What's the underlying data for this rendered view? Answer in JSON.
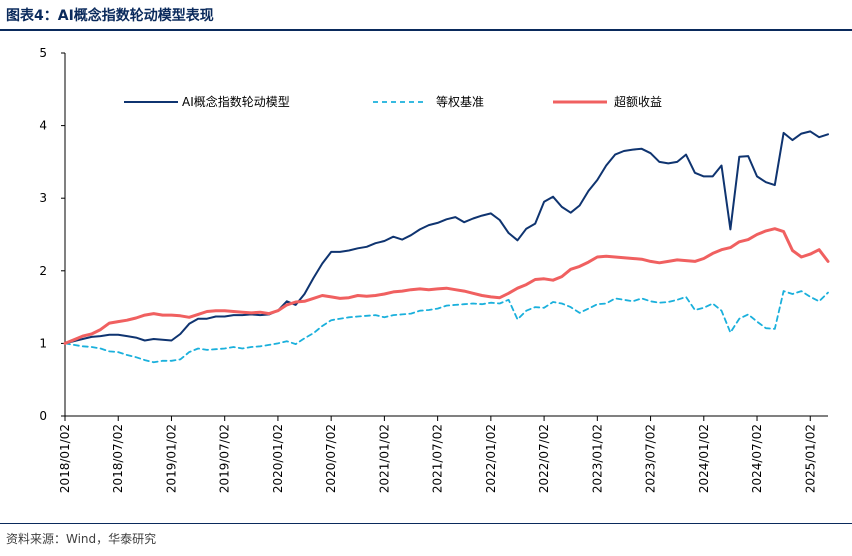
{
  "header": {
    "title": "图表4：AI概念指数轮动模型表现"
  },
  "footer": {
    "source": "资料来源：Wind，华泰研究"
  },
  "colors": {
    "model": "#0f3470",
    "benchmark": "#1ab0dc",
    "excess": "#f06060",
    "frame": "#0a2a5c"
  },
  "chart_data": {
    "type": "line",
    "title": "AI概念指数轮动模型表现",
    "xlabel": "",
    "ylabel": "",
    "ylim": [
      0,
      5
    ],
    "yticks": [
      "0",
      "1",
      "2",
      "3",
      "4",
      "5"
    ],
    "xticks": [
      "2018/01/02",
      "2018/07/02",
      "2019/01/02",
      "2019/07/02",
      "2020/01/02",
      "2020/07/02",
      "2021/01/02",
      "2021/07/02",
      "2022/01/02",
      "2022/07/02",
      "2023/01/02",
      "2023/07/02",
      "2024/01/02",
      "2024/07/02",
      "2025/01/02"
    ],
    "x": [
      "2018-01",
      "2018-02",
      "2018-03",
      "2018-04",
      "2018-05",
      "2018-06",
      "2018-07",
      "2018-08",
      "2018-09",
      "2018-10",
      "2018-11",
      "2018-12",
      "2019-01",
      "2019-02",
      "2019-03",
      "2019-04",
      "2019-05",
      "2019-06",
      "2019-07",
      "2019-08",
      "2019-09",
      "2019-10",
      "2019-11",
      "2019-12",
      "2020-01",
      "2020-02",
      "2020-03",
      "2020-04",
      "2020-05",
      "2020-06",
      "2020-07",
      "2020-08",
      "2020-09",
      "2020-10",
      "2020-11",
      "2020-12",
      "2021-01",
      "2021-02",
      "2021-03",
      "2021-04",
      "2021-05",
      "2021-06",
      "2021-07",
      "2021-08",
      "2021-09",
      "2021-10",
      "2021-11",
      "2021-12",
      "2022-01",
      "2022-02",
      "2022-03",
      "2022-04",
      "2022-05",
      "2022-06",
      "2022-07",
      "2022-08",
      "2022-09",
      "2022-10",
      "2022-11",
      "2022-12",
      "2023-01",
      "2023-02",
      "2023-03",
      "2023-04",
      "2023-05",
      "2023-06",
      "2023-07",
      "2023-08",
      "2023-09",
      "2023-10",
      "2023-11",
      "2023-12",
      "2024-01",
      "2024-02",
      "2024-03",
      "2024-04",
      "2024-05",
      "2024-06",
      "2024-07",
      "2024-08",
      "2024-09",
      "2024-10",
      "2024-11",
      "2024-12",
      "2025-01",
      "2025-02",
      "2025-03"
    ],
    "legend": {
      "placement": "top",
      "orientation": "horizontal"
    },
    "grid": false,
    "series": [
      {
        "name": "AI概念指数轮动模型",
        "style": "solid",
        "values": [
          1.0,
          1.03,
          1.06,
          1.09,
          1.1,
          1.12,
          1.12,
          1.1,
          1.08,
          1.04,
          1.06,
          1.05,
          1.04,
          1.13,
          1.27,
          1.34,
          1.34,
          1.37,
          1.37,
          1.39,
          1.39,
          1.4,
          1.39,
          1.4,
          1.45,
          1.58,
          1.53,
          1.68,
          1.9,
          2.1,
          2.26,
          2.26,
          2.28,
          2.31,
          2.33,
          2.38,
          2.41,
          2.47,
          2.43,
          2.49,
          2.57,
          2.63,
          2.66,
          2.71,
          2.74,
          2.67,
          2.72,
          2.76,
          2.79,
          2.7,
          2.52,
          2.42,
          2.58,
          2.65,
          2.95,
          3.02,
          2.88,
          2.8,
          2.9,
          3.1,
          3.25,
          3.45,
          3.6,
          3.65,
          3.67,
          3.68,
          3.62,
          3.5,
          3.48,
          3.5,
          3.6,
          3.35,
          3.3,
          3.3,
          3.45,
          2.57,
          3.57,
          3.58,
          3.3,
          3.22,
          3.18,
          3.9,
          3.8,
          3.89,
          3.92,
          3.84,
          3.88
        ]
      },
      {
        "name": "等权基准",
        "style": "dashed",
        "values": [
          1.0,
          0.98,
          0.96,
          0.95,
          0.93,
          0.89,
          0.88,
          0.84,
          0.81,
          0.77,
          0.74,
          0.76,
          0.76,
          0.78,
          0.88,
          0.93,
          0.91,
          0.92,
          0.93,
          0.95,
          0.93,
          0.95,
          0.96,
          0.98,
          1.0,
          1.03,
          0.99,
          1.07,
          1.14,
          1.24,
          1.32,
          1.34,
          1.36,
          1.37,
          1.38,
          1.39,
          1.36,
          1.39,
          1.4,
          1.41,
          1.45,
          1.46,
          1.48,
          1.52,
          1.53,
          1.54,
          1.55,
          1.54,
          1.56,
          1.55,
          1.6,
          1.33,
          1.45,
          1.5,
          1.49,
          1.57,
          1.55,
          1.5,
          1.42,
          1.48,
          1.54,
          1.55,
          1.62,
          1.6,
          1.58,
          1.62,
          1.58,
          1.56,
          1.57,
          1.6,
          1.64,
          1.46,
          1.49,
          1.55,
          1.45,
          1.15,
          1.34,
          1.4,
          1.3,
          1.21,
          1.2,
          1.72,
          1.68,
          1.72,
          1.64,
          1.58,
          1.7
        ]
      },
      {
        "name": "超额收益",
        "style": "solid",
        "values": [
          1.0,
          1.05,
          1.1,
          1.13,
          1.19,
          1.28,
          1.3,
          1.32,
          1.35,
          1.39,
          1.41,
          1.39,
          1.39,
          1.38,
          1.36,
          1.4,
          1.44,
          1.45,
          1.45,
          1.44,
          1.43,
          1.42,
          1.43,
          1.41,
          1.45,
          1.53,
          1.57,
          1.58,
          1.62,
          1.66,
          1.64,
          1.62,
          1.63,
          1.66,
          1.65,
          1.66,
          1.68,
          1.71,
          1.72,
          1.74,
          1.75,
          1.74,
          1.75,
          1.76,
          1.74,
          1.72,
          1.69,
          1.66,
          1.64,
          1.63,
          1.69,
          1.76,
          1.81,
          1.88,
          1.89,
          1.87,
          1.92,
          2.02,
          2.06,
          2.12,
          2.19,
          2.2,
          2.19,
          2.18,
          2.17,
          2.16,
          2.13,
          2.11,
          2.13,
          2.15,
          2.14,
          2.13,
          2.17,
          2.24,
          2.29,
          2.32,
          2.4,
          2.43,
          2.5,
          2.55,
          2.58,
          2.54,
          2.28,
          2.19,
          2.23,
          2.29,
          2.13
        ]
      }
    ]
  }
}
